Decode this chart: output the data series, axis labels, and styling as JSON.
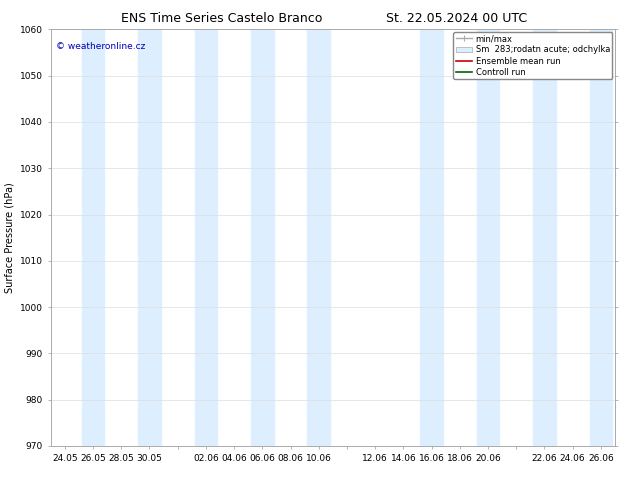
{
  "title_left": "ENS Time Series Castelo Branco",
  "title_right": "St. 22.05.2024 00 UTC",
  "ylabel": "Surface Pressure (hPa)",
  "ylim": [
    970,
    1060
  ],
  "yticks": [
    970,
    980,
    990,
    1000,
    1010,
    1020,
    1030,
    1040,
    1050,
    1060
  ],
  "xtick_labels": [
    "24.05",
    "26.05",
    "28.05",
    "30.05",
    "",
    "02.06",
    "04.06",
    "06.06",
    "08.06",
    "10.06",
    "",
    "12.06",
    "14.06",
    "16.06",
    "18.06",
    "20.06",
    "",
    "22.06",
    "24.06",
    "26.06"
  ],
  "watermark": "© weatheronline.cz",
  "watermark_color": "#0000bb",
  "bg_color": "#ffffff",
  "band_color": "#ddeeff",
  "title_fontsize": 9,
  "axis_label_fontsize": 7,
  "tick_fontsize": 6.5,
  "legend_fontsize": 6,
  "legend_label_color": "#333333",
  "spine_color": "#aaaaaa",
  "grid_color": "#dddddd",
  "min_max_color": "#aaaaaa",
  "ensemble_color": "#cc0000",
  "control_color": "#006600"
}
